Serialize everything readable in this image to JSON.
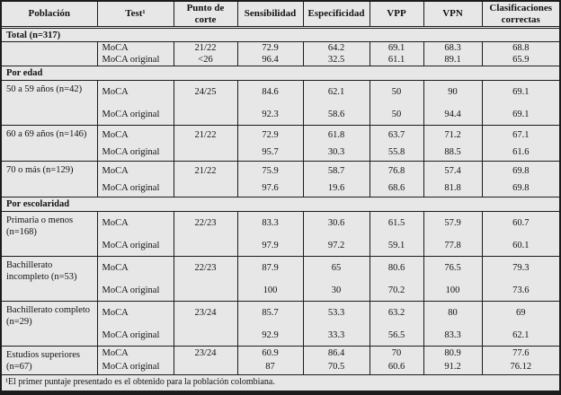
{
  "table": {
    "columns": [
      "Población",
      "Test¹",
      "Punto de corte",
      "Sensibilidad",
      "Especificidad",
      "VPP",
      "VPN",
      "Clasificaciones correctas"
    ],
    "sections": [
      {
        "title": "Total (n=317)",
        "groups": [
          {
            "population": "",
            "density": "tight",
            "rows": [
              {
                "test": "MoCA",
                "cutoff": "21/22",
                "sens": "72.9",
                "spec": "64.2",
                "vpp": "69.1",
                "vpn": "68.3",
                "correct": "68.8"
              },
              {
                "test": "MoCA original",
                "cutoff": "<26",
                "sens": "96.4",
                "spec": "32.5",
                "vpp": "61.1",
                "vpn": "89.1",
                "correct": "65.9"
              }
            ]
          }
        ]
      },
      {
        "title": "Por edad",
        "groups": [
          {
            "population": "50 a 59 años (n=42)",
            "density": "tall",
            "rows": [
              {
                "test": "MoCA",
                "cutoff": "24/25",
                "sens": "84.6",
                "spec": "62.1",
                "vpp": "50",
                "vpn": "90",
                "correct": "69.1"
              },
              {
                "test": "MoCA original",
                "cutoff": "",
                "sens": "92.3",
                "spec": "58.6",
                "vpp": "50",
                "vpn": "94.4",
                "correct": "69.1"
              }
            ]
          },
          {
            "population": "60 a 69 años (n=146)",
            "density": "med",
            "rows": [
              {
                "test": "MoCA",
                "cutoff": "21/22",
                "sens": "72.9",
                "spec": "61.8",
                "vpp": "63.7",
                "vpn": "71.2",
                "correct": "67.1"
              },
              {
                "test": "MoCA original",
                "cutoff": "",
                "sens": "95.7",
                "spec": "30.3",
                "vpp": "55.8",
                "vpn": "88.5",
                "correct": "61.6"
              }
            ]
          },
          {
            "population": "70 o más (n=129)",
            "density": "med",
            "rows": [
              {
                "test": "MoCA",
                "cutoff": "21/22",
                "sens": "75.9",
                "spec": "58.7",
                "vpp": "76.8",
                "vpn": "57.4",
                "correct": "69.8"
              },
              {
                "test": "MoCA original",
                "cutoff": "",
                "sens": "97.6",
                "spec": "19.6",
                "vpp": "68.6",
                "vpn": "81.8",
                "correct": "69.8"
              }
            ]
          }
        ]
      },
      {
        "title": "Por escolaridad",
        "groups": [
          {
            "population": "Primaria o menos (n=168)",
            "density": "tall",
            "rows": [
              {
                "test": "MoCA",
                "cutoff": "22/23",
                "sens": "83.3",
                "spec": "30.6",
                "vpp": "61.5",
                "vpn": "57.9",
                "correct": "60.7"
              },
              {
                "test": "MoCA original",
                "cutoff": "",
                "sens": "97.9",
                "spec": "97.2",
                "vpp": "59.1",
                "vpn": "77.8",
                "correct": "60.1"
              }
            ]
          },
          {
            "population": "Bachillerato incompleto (n=53)",
            "density": "tall",
            "rows": [
              {
                "test": "MoCA",
                "cutoff": "22/23",
                "sens": "87.9",
                "spec": "65",
                "vpp": "80.6",
                "vpn": "76.5",
                "correct": "79.3"
              },
              {
                "test": "MoCA original",
                "cutoff": "",
                "sens": "100",
                "spec": "30",
                "vpp": "70.2",
                "vpn": "100",
                "correct": "73.6"
              }
            ]
          },
          {
            "population": "Bachillerato completo (n=29)",
            "density": "tall",
            "rows": [
              {
                "test": "MoCA",
                "cutoff": "23/24",
                "sens": "85.7",
                "spec": "53.3",
                "vpp": "63.2",
                "vpn": "80",
                "correct": "69"
              },
              {
                "test": "MoCA original",
                "cutoff": "",
                "sens": "92.9",
                "spec": "33.3",
                "vpp": "56.5",
                "vpn": "83.3",
                "correct": "62.1"
              }
            ]
          },
          {
            "population": "Estudios superiores (n=67)",
            "density": "tight",
            "rows": [
              {
                "test": "MoCA",
                "cutoff": "23/24",
                "sens": "60.9",
                "spec": "86.4",
                "vpp": "70",
                "vpn": "80.9",
                "correct": "77.6"
              },
              {
                "test": "MoCA original",
                "cutoff": "",
                "sens": "87",
                "spec": "70.5",
                "vpp": "60.6",
                "vpn": "91.2",
                "correct": "76.12"
              }
            ]
          }
        ]
      }
    ],
    "footnote": "¹El primer puntaje presentado es el obtenido para la población colombiana."
  }
}
